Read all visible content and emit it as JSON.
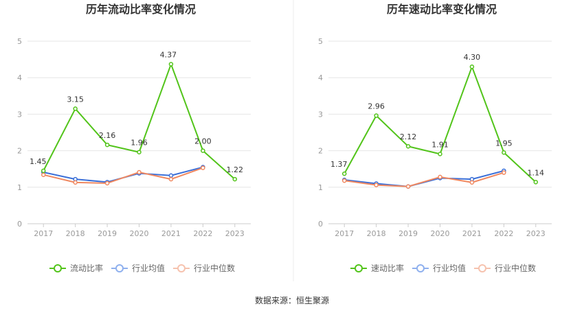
{
  "source_text": "数据来源：恒生聚源",
  "chart_data": [
    {
      "type": "line",
      "title": "历年流动比率变化情况",
      "categories": [
        "2017",
        "2018",
        "2019",
        "2020",
        "2021",
        "2022",
        "2023"
      ],
      "ylim": [
        0,
        5
      ],
      "yticks": [
        0,
        1,
        2,
        3,
        4,
        5
      ],
      "grid": true,
      "legend_position": "bottom",
      "series": [
        {
          "name": "流动比率",
          "color": "#52c41a",
          "values": [
            1.45,
            3.15,
            2.16,
            1.96,
            4.37,
            2.0,
            1.22
          ],
          "labels": [
            "1.45",
            "3.15",
            "2.16",
            "1.96",
            "4.37",
            "2.00",
            "1.22"
          ]
        },
        {
          "name": "行业均值",
          "color": "#3a6fd8",
          "values": [
            1.41,
            1.22,
            1.14,
            1.38,
            1.32,
            1.55,
            null
          ]
        },
        {
          "name": "行业中位数",
          "color": "#f08860",
          "values": [
            1.34,
            1.13,
            1.11,
            1.41,
            1.22,
            1.53,
            null
          ]
        }
      ]
    },
    {
      "type": "line",
      "title": "历年速动比率变化情况",
      "categories": [
        "2017",
        "2018",
        "2019",
        "2020",
        "2021",
        "2022",
        "2023"
      ],
      "ylim": [
        0,
        5
      ],
      "yticks": [
        0,
        1,
        2,
        3,
        4,
        5
      ],
      "grid": true,
      "legend_position": "bottom",
      "series": [
        {
          "name": "速动比率",
          "color": "#52c41a",
          "values": [
            1.37,
            2.96,
            2.12,
            1.91,
            4.3,
            1.95,
            1.14
          ],
          "labels": [
            "1.37",
            "2.96",
            "2.12",
            "1.91",
            "4.30",
            "1.95",
            "1.14"
          ]
        },
        {
          "name": "行业均值",
          "color": "#3a6fd8",
          "values": [
            1.2,
            1.1,
            1.02,
            1.25,
            1.22,
            1.45,
            null
          ]
        },
        {
          "name": "行业中位数",
          "color": "#f08860",
          "values": [
            1.18,
            1.06,
            1.02,
            1.28,
            1.13,
            1.4,
            null
          ]
        }
      ]
    }
  ]
}
